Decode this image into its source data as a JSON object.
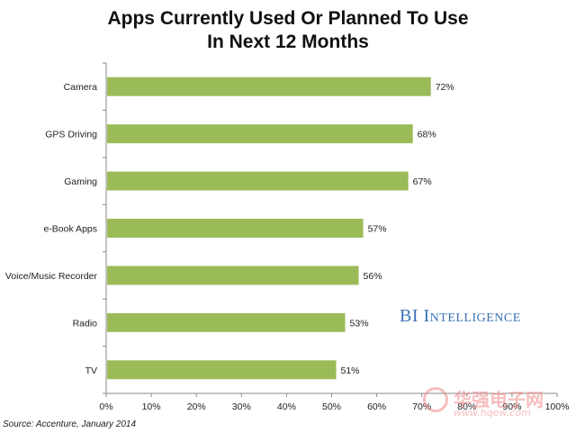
{
  "chart_data": {
    "type": "bar",
    "orientation": "horizontal",
    "title_lines": [
      "Apps Currently Used Or Planned To Use",
      "In Next 12 Months"
    ],
    "categories": [
      "Camera",
      "GPS Driving",
      "Gaming",
      "e-Book Apps",
      "Voice/Music Recorder",
      "Radio",
      "TV"
    ],
    "values": [
      72,
      68,
      67,
      57,
      56,
      53,
      51
    ],
    "value_labels": [
      "72%",
      "68%",
      "67%",
      "57%",
      "56%",
      "53%",
      "51%"
    ],
    "xlim": [
      0,
      100
    ],
    "x_ticks": [
      "0%",
      "10%",
      "20%",
      "30%",
      "40%",
      "50%",
      "60%",
      "70%",
      "80%",
      "90%",
      "100%"
    ],
    "bar_color": "#9bbb59",
    "grid": false,
    "legend": "none"
  },
  "branding": {
    "text": "BI Intelligence",
    "color": "#3a74b8"
  },
  "source": "Source: Accenture, January 2014",
  "watermark": {
    "text": "华强电子网",
    "url": "www.hqew.com"
  }
}
